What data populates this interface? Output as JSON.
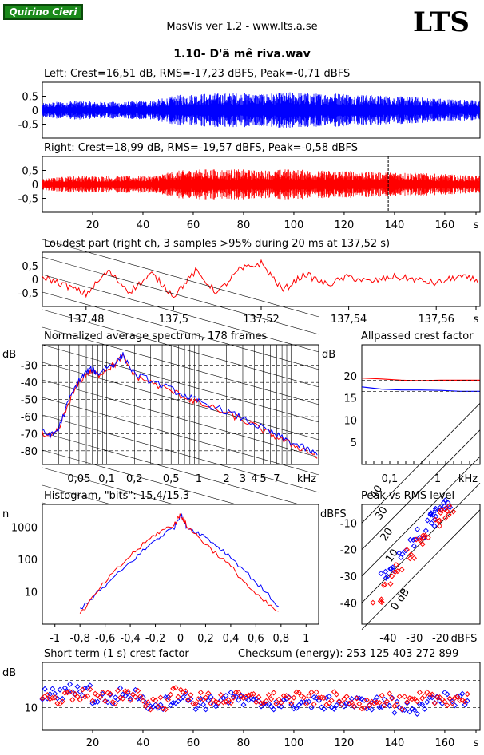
{
  "header": {
    "badge": "Quirino Cieri",
    "app_title": "MasVis ver 1.2 - www.lts.a.se",
    "logo": "LTS",
    "track_title": "1.10- D'ä mê riva.wav"
  },
  "colors": {
    "left": "#0000ff",
    "right": "#ff0000",
    "badge": "#1a8a1a"
  },
  "chart_data": [
    {
      "id": "left",
      "type": "line",
      "title": "Left: Crest=16,51 dB, RMS=-17,23 dBFS, Peak=-0,71 dBFS",
      "yticks": [
        "0,5",
        "0",
        "-0,5"
      ],
      "ylim": [
        -1,
        1
      ],
      "xlim": [
        0,
        174
      ],
      "series": [
        {
          "values": [
            0.25,
            0.35,
            0.3,
            0.3,
            0.35,
            0.55,
            0.6,
            0.62,
            0.6,
            0.65,
            0.6,
            0.62,
            0.55,
            0.5,
            0.45,
            0.4,
            0.35
          ]
        }
      ]
    },
    {
      "id": "right",
      "type": "line",
      "title": "Right: Crest=18,99 dB, RMS=-19,57 dBFS, Peak=-0,58 dBFS",
      "yticks": [
        "0,5",
        "0",
        "-0,5"
      ],
      "ylim": [
        -1,
        1
      ],
      "xlim": [
        0,
        174
      ],
      "xticks": [
        "20",
        "40",
        "60",
        "80",
        "100",
        "120",
        "140",
        "160",
        "s"
      ],
      "loudest_marker_s": 137.52,
      "series": [
        {
          "values": [
            0.2,
            0.3,
            0.3,
            0.3,
            0.3,
            0.5,
            0.55,
            0.55,
            0.5,
            0.55,
            0.5,
            0.5,
            0.45,
            0.45,
            0.4,
            0.35,
            0.3
          ]
        }
      ]
    },
    {
      "id": "loudest",
      "type": "line",
      "title": "Loudest part (right ch, 3 samples >95% during 20 ms at 137,52 s)",
      "yticks": [
        "0,5",
        "0",
        "-0,5"
      ],
      "ylim": [
        -1,
        1
      ],
      "xlim": [
        137.47,
        137.57
      ],
      "xticks": [
        "137,48",
        "137,5",
        "137,52",
        "137,54",
        "137,56",
        "s"
      ],
      "series": [
        {
          "x": [
            137.47,
            137.475,
            137.48,
            137.485,
            137.49,
            137.495,
            137.5,
            137.505,
            137.51,
            137.515,
            137.52,
            137.525,
            137.53,
            137.535,
            137.54,
            137.545,
            137.55,
            137.555,
            137.56,
            137.565,
            137.57
          ],
          "values": [
            0.1,
            -0.2,
            -0.55,
            0.3,
            -0.45,
            0.2,
            -0.6,
            0.3,
            -0.5,
            0.35,
            0.6,
            -0.4,
            0.2,
            -0.2,
            0.1,
            -0.1,
            0.1,
            0.0,
            -0.15,
            0.1,
            -0.05
          ]
        }
      ]
    },
    {
      "id": "spectrum",
      "type": "line",
      "title": "Normalized average spectrum, 178 frames",
      "ylabel": "dB",
      "yticks": [
        "-30",
        "-40",
        "-50",
        "-60",
        "-70",
        "-80"
      ],
      "ylim": [
        -88,
        -18
      ],
      "xticks": [
        "0,05",
        "0,1",
        "0,2",
        "0,5",
        "1",
        "2",
        "3",
        "4",
        "5",
        "7",
        "kHz"
      ],
      "xlim": [
        0.02,
        20
      ],
      "series": [
        {
          "x": [
            0.02,
            0.025,
            0.03,
            0.04,
            0.05,
            0.06,
            0.07,
            0.08,
            0.1,
            0.12,
            0.15,
            0.2,
            0.3,
            0.5,
            0.8,
            1,
            2,
            3,
            5,
            7,
            10,
            15,
            20
          ],
          "values": [
            -70,
            -72,
            -68,
            -50,
            -40,
            -35,
            -33,
            -36,
            -32,
            -30,
            -25,
            -36,
            -40,
            -45,
            -50,
            -52,
            -58,
            -62,
            -68,
            -72,
            -76,
            -80,
            -84
          ]
        }
      ]
    },
    {
      "id": "allpass",
      "type": "line",
      "title": "Allpassed crest factor",
      "ylabel": "dB",
      "yticks": [
        "20",
        "15",
        "10",
        "5"
      ],
      "ylim": [
        0,
        27
      ],
      "xticks": [
        "0,1",
        "1",
        "kHz"
      ],
      "series": [
        {
          "values": [
            19.5,
            19.3,
            19.0,
            18.9,
            19.0,
            19.0,
            19.0
          ]
        },
        {
          "values": [
            17.5,
            17.0,
            16.8,
            16.8,
            16.7,
            16.5,
            16.5
          ]
        }
      ]
    },
    {
      "id": "histogram",
      "type": "line",
      "title": "Histogram, \"bits\": 15,4/15,3",
      "ylabel": "n",
      "yticks": [
        "1000",
        "100",
        "10"
      ],
      "xticks": [
        "-1",
        "-0,8",
        "-0,6",
        "-0,4",
        "-0,2",
        "0",
        "0,2",
        "0,4",
        "0,6",
        "0,8",
        "1"
      ],
      "xlim": [
        -1.1,
        1.1
      ],
      "series": [
        {
          "x": [
            -0.8,
            -0.6,
            -0.4,
            -0.2,
            -0.05,
            0,
            0.05,
            0.2,
            0.4,
            0.6,
            0.8
          ],
          "values": [
            3,
            15,
            80,
            400,
            1000,
            2500,
            1000,
            500,
            120,
            20,
            3
          ]
        },
        {
          "x": [
            -0.8,
            -0.6,
            -0.4,
            -0.2,
            -0.05,
            0,
            0.05,
            0.2,
            0.4,
            0.6,
            0.8
          ],
          "values": [
            2,
            20,
            130,
            600,
            1200,
            2500,
            1100,
            300,
            60,
            8,
            2
          ]
        }
      ]
    },
    {
      "id": "peakrms",
      "type": "scatter",
      "title": "Peak vs RMS level",
      "ylabel": "dBFS",
      "yticks": [
        "-10",
        "-20",
        "-30",
        "-40"
      ],
      "xticks": [
        "-40",
        "-30",
        "-20",
        "dBFS"
      ],
      "diag_labels": [
        "40",
        "30",
        "20",
        "10",
        "0 dB"
      ],
      "series": [
        {
          "x": [
            -42,
            -38,
            -35,
            -30,
            -27,
            -24,
            -22,
            -20,
            -18,
            -17
          ],
          "values": [
            -30,
            -26,
            -22,
            -17,
            -14,
            -10,
            -8,
            -6,
            -4,
            -3
          ]
        },
        {
          "x": [
            -44,
            -40,
            -36,
            -32,
            -28,
            -25,
            -22,
            -19,
            -17
          ],
          "values": [
            -38,
            -32,
            -27,
            -22,
            -18,
            -14,
            -10,
            -7,
            -5
          ]
        }
      ]
    },
    {
      "id": "shortcrest",
      "type": "scatter",
      "title": "Short term (1 s) crest factor",
      "checksum": "Checksum (energy):   253 125 403 272 899",
      "ylabel": "dB",
      "yticks": [
        "10"
      ],
      "xticks": [
        "20",
        "40",
        "60",
        "80",
        "100",
        "120",
        "140",
        "160",
        "s"
      ],
      "xlim": [
        0,
        174
      ],
      "series": [
        {
          "x": [
            5,
            15,
            25,
            35,
            45,
            55,
            65,
            75,
            85,
            95,
            105,
            115,
            125,
            135,
            145,
            155,
            165
          ],
          "values": [
            13,
            14,
            12,
            13,
            11,
            12,
            11,
            12,
            11,
            11,
            11,
            11,
            11,
            11,
            10,
            11,
            12
          ]
        },
        {
          "x": [
            5,
            15,
            25,
            35,
            45,
            55,
            65,
            75,
            85,
            95,
            105,
            115,
            125,
            135,
            145,
            155,
            165
          ],
          "values": [
            12,
            13,
            12,
            13,
            11,
            13,
            12,
            12,
            12,
            12,
            12,
            12,
            11,
            12,
            11,
            12,
            12
          ]
        }
      ]
    }
  ]
}
